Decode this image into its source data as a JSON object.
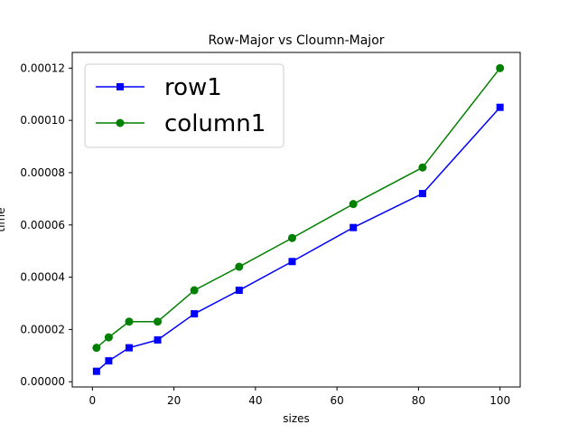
{
  "chart_data": {
    "type": "line",
    "title": "Row-Major vs Cloumn-Major",
    "xlabel": "sizes",
    "ylabel": "time",
    "xlim": [
      -4.95,
      104.95
    ],
    "ylim": [
      -2e-06,
      0.000126
    ],
    "xticks": [
      0,
      20,
      40,
      60,
      80,
      100
    ],
    "xtick_labels": [
      "0",
      "20",
      "40",
      "60",
      "80",
      "100"
    ],
    "yticks": [
      0,
      2e-05,
      4e-05,
      6e-05,
      8e-05,
      0.0001,
      0.00012
    ],
    "ytick_labels": [
      "0.00000",
      "0.00002",
      "0.00004",
      "0.00006",
      "0.00008",
      "0.00010",
      "0.00012"
    ],
    "grid": false,
    "legend_position": "top-left",
    "x": [
      1,
      4,
      9,
      16,
      25,
      36,
      49,
      64,
      81,
      100
    ],
    "series": [
      {
        "name": "row1",
        "color": "#0000ff",
        "marker": "square",
        "values": [
          4e-06,
          8e-06,
          1.3e-05,
          1.6e-05,
          2.6e-05,
          3.5e-05,
          4.6e-05,
          5.9e-05,
          7.2e-05,
          0.000105
        ]
      },
      {
        "name": "column1",
        "color": "#008000",
        "marker": "circle",
        "values": [
          1.3e-05,
          1.7e-05,
          2.3e-05,
          2.3e-05,
          3.5e-05,
          4.4e-05,
          5.5e-05,
          6.8e-05,
          8.2e-05,
          0.00012
        ]
      }
    ]
  }
}
